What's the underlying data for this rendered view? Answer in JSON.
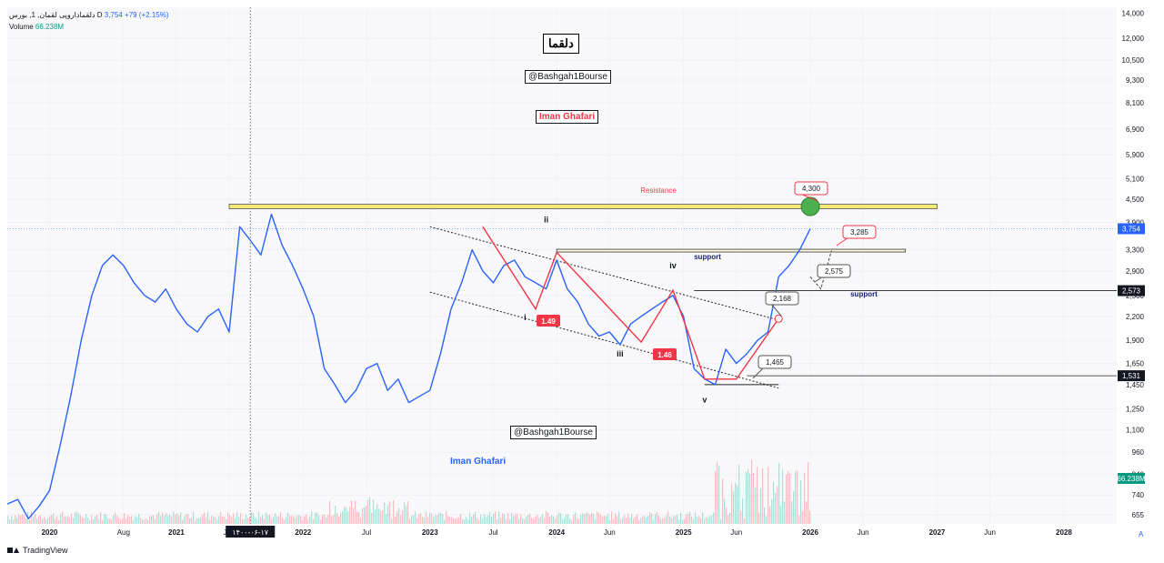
{
  "header": {
    "symbol_line": "دلقماداروپی لقمان, 1, بورس",
    "timeframe": "D",
    "last_value": "3,754",
    "change": "+79 (+2.15%)",
    "volume_label": "Volume",
    "volume_value": "66.238M"
  },
  "title_box": "دلقما",
  "watermarks": {
    "bashgah_1": "@Bashgah1Bourse",
    "bashgah_2": "@Bashgah1Bourse",
    "author_1": "Iman Ghafari",
    "author_2": "Iman Ghafari"
  },
  "annotations": {
    "resistance": "Resistance",
    "support_1": "support",
    "support_2": "support",
    "callouts": [
      "4,300",
      "3,285",
      "2,575",
      "2,168",
      "1,465"
    ],
    "ratio_1": "1.49",
    "ratio_2": "1.46",
    "wave_labels": [
      "i",
      "ii",
      "iii",
      "iv",
      "v"
    ],
    "date_marker": "۱۴۰۰-۰۶-۱۷"
  },
  "price_scale": {
    "ticks": [
      "14,000",
      "12,000",
      "10,500",
      "9,300",
      "8,100",
      "6,900",
      "5,900",
      "5,100",
      "4,500",
      "3,900",
      "3,300",
      "2,900",
      "2,500",
      "2,200",
      "1,900",
      "1,650",
      "1,450",
      "1,250",
      "1,100",
      "960",
      "840",
      "740",
      "655"
    ],
    "last_price_label": "3,754",
    "level_2573": "2,573",
    "level_1531": "1,531",
    "volume_label": "66.238M",
    "scale_mode": "A"
  },
  "time_scale": {
    "ticks": [
      "2020",
      "Aug",
      "2021",
      "Jun",
      "2022",
      "Jul",
      "2023",
      "Jul",
      "2024",
      "Jun",
      "2025",
      "Jun",
      "2026",
      "Jun",
      "2027",
      "Jun",
      "2028"
    ]
  },
  "footer": {
    "brand": "TradingView"
  },
  "colors": {
    "price_line": "#2962ff",
    "wave_red": "#f23645",
    "resistance_band": "#f5e97a",
    "up_volume": "#26a69a",
    "down_volume": "#ef5350",
    "green_circle": "#4caf50"
  },
  "chart_data": {
    "type": "line",
    "scale": "log",
    "ylim": [
      620,
      14500
    ],
    "x_range": [
      "2019-09",
      "2028-06"
    ],
    "series": [
      {
        "name": "",
        "x": [
          "2019-09",
          "2019-10",
          "2019-11",
          "2019-12",
          "2020-01",
          "2020-02",
          "2020-03",
          "2020-04",
          "2020-05",
          "2020-06",
          "2020-07",
          "2020-08",
          "2020-09",
          "2020-10",
          "2020-11",
          "2020-12",
          "2021-01",
          "2021-02",
          "2021-03",
          "2021-04",
          "2021-05",
          "2021-06",
          "2021-07",
          "2021-08",
          "2021-09",
          "2021-10",
          "2021-11",
          "2021-12",
          "2022-01",
          "2022-02",
          "2022-03",
          "2022-04",
          "2022-05",
          "2022-06",
          "2022-07",
          "2022-08",
          "2022-09",
          "2022-10",
          "2022-11",
          "2022-12",
          "2023-01",
          "2023-02",
          "2023-03",
          "2023-04",
          "2023-05",
          "2023-06",
          "2023-07",
          "2023-08",
          "2023-09",
          "2023-10",
          "2023-11",
          "2023-12",
          "2024-01",
          "2024-02",
          "2024-03",
          "2024-04",
          "2024-05",
          "2024-06",
          "2024-07",
          "2024-08",
          "2024-09",
          "2024-10",
          "2024-11",
          "2024-12",
          "2025-01",
          "2025-02",
          "2025-03",
          "2025-04",
          "2025-05",
          "2025-06",
          "2025-07",
          "2025-08",
          "2025-09",
          "2025-10",
          "2025-11",
          "2025-12",
          "2026-01"
        ],
        "values": [
          700,
          720,
          640,
          690,
          760,
          1000,
          1350,
          1900,
          2500,
          3000,
          3200,
          3000,
          2700,
          2500,
          2400,
          2600,
          2300,
          2100,
          2000,
          2200,
          2300,
          2000,
          3800,
          3500,
          3200,
          4100,
          3400,
          3000,
          2600,
          2200,
          1600,
          1450,
          1300,
          1400,
          1600,
          1650,
          1400,
          1500,
          1300,
          1350,
          1400,
          1750,
          2300,
          2700,
          3300,
          2900,
          2700,
          3000,
          3100,
          2800,
          2700,
          2600,
          3100,
          2600,
          2400,
          2100,
          1950,
          2000,
          1850,
          2100,
          2200,
          2300,
          2400,
          2500,
          2200,
          1600,
          1500,
          1450,
          1800,
          1650,
          1750,
          1900,
          2000,
          2800,
          3000,
          3300,
          3754
        ]
      }
    ],
    "resistance": 4300,
    "supports": [
      3285,
      2573,
      1531
    ],
    "projection": [
      3754,
      2575,
      3285
    ]
  }
}
